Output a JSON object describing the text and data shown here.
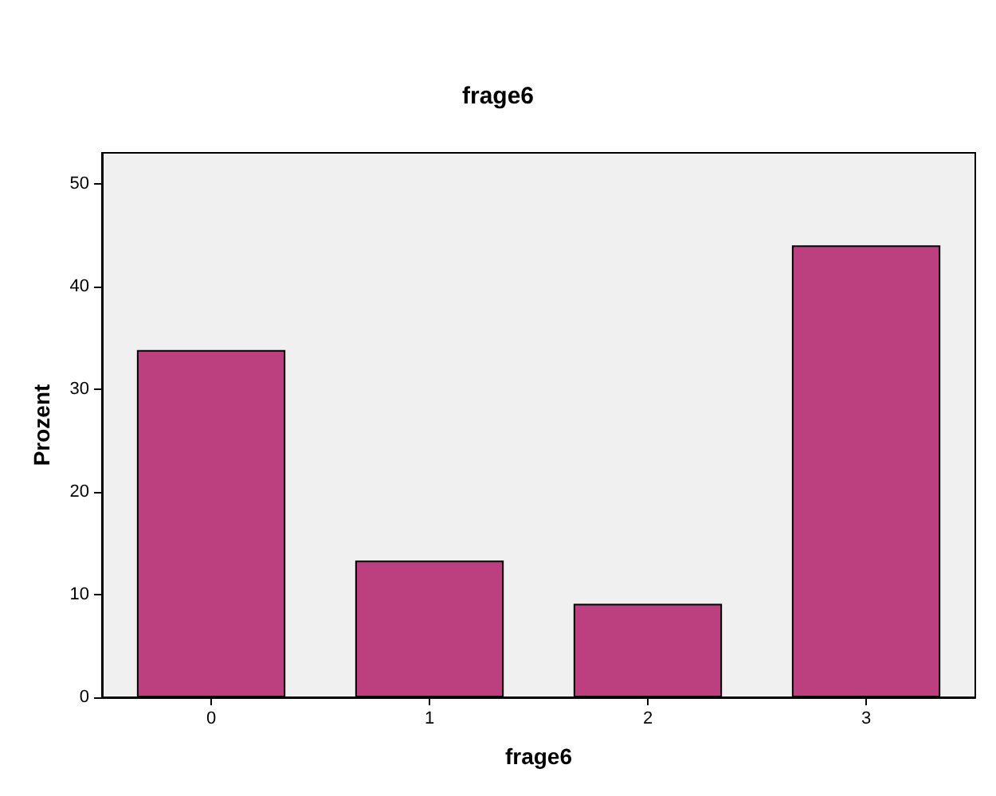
{
  "chart_data": {
    "type": "bar",
    "title": "frage6",
    "xlabel": "frage6",
    "ylabel": "Prozent",
    "categories": [
      "0",
      "1",
      "2",
      "3"
    ],
    "values": [
      33.8,
      13.3,
      9.1,
      44.0
    ],
    "color": "#bc4080",
    "ylim": [
      0,
      53
    ],
    "yticks": [
      0,
      10,
      20,
      30,
      40,
      50
    ],
    "grid": false
  }
}
